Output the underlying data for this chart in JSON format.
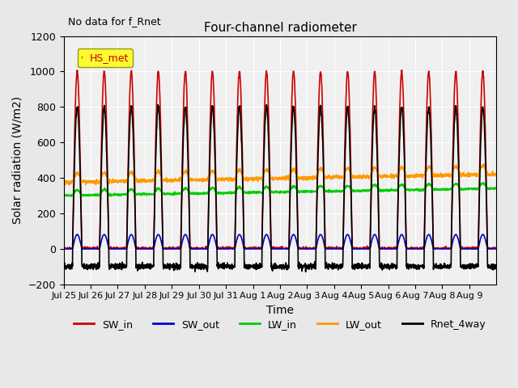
{
  "title": "Four-channel radiometer",
  "subtitle": "No data for f_Rnet",
  "xlabel": "Time",
  "ylabel": "Solar radiation (W/m2)",
  "ylim": [
    -200,
    1200
  ],
  "legend_label": "HS_met",
  "x_tick_labels": [
    "Jul 25",
    "Jul 26",
    "Jul 27",
    "Jul 28",
    "Jul 29",
    "Jul 30",
    "Jul 31",
    "Aug 1",
    "Aug 2",
    "Aug 3",
    "Aug 4",
    "Aug 5",
    "Aug 6",
    "Aug 7",
    "Aug 8",
    "Aug 9"
  ],
  "colors": {
    "SW_in": "#cc0000",
    "SW_out": "#0000cc",
    "LW_in": "#00cc00",
    "LW_out": "#ff9900",
    "Rnet_4way": "#000000"
  },
  "n_days": 16,
  "background_color": "#e8e8e8",
  "plot_bg_color": "#f0f0f0",
  "SW_in_peak": 1000,
  "LW_in_base": 310,
  "LW_in_amplitude": 30,
  "LW_out_base": 380,
  "LW_out_amplitude": 50,
  "Rnet_peak": 800,
  "Rnet_night": -100,
  "linewidth": 1.2
}
